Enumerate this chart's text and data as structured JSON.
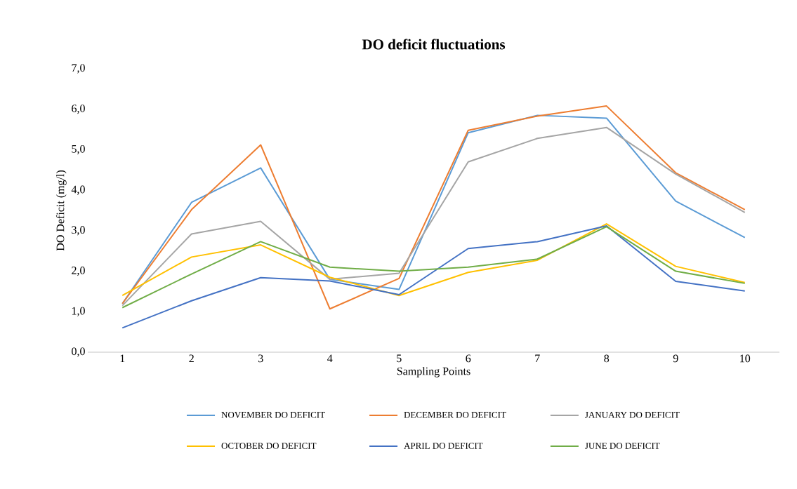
{
  "chart_data": {
    "type": "line",
    "title": "DO deficit fluctuations",
    "xlabel": "Sampling Points",
    "ylabel": "DO Deficit (mg/l)",
    "categories": [
      "1",
      "2",
      "3",
      "4",
      "5",
      "6",
      "7",
      "8",
      "9",
      "10"
    ],
    "ylim": [
      0,
      7
    ],
    "yticks": [
      {
        "value": 0,
        "label": "0,0"
      },
      {
        "value": 1,
        "label": "1,0"
      },
      {
        "value": 2,
        "label": "2,0"
      },
      {
        "value": 3,
        "label": "3,0"
      },
      {
        "value": 4,
        "label": "4,0"
      },
      {
        "value": 5,
        "label": "5,0"
      },
      {
        "value": 6,
        "label": "6,0"
      },
      {
        "value": 7,
        "label": "7,0"
      }
    ],
    "series": [
      {
        "name": "NOVEMBER DO DEFICIT",
        "color": "#5b9bd5",
        "values": [
          1.2,
          3.7,
          4.55,
          1.8,
          1.55,
          5.42,
          5.85,
          5.78,
          3.73,
          2.83
        ]
      },
      {
        "name": "DECEMBER DO DEFICIT",
        "color": "#ed7d31",
        "values": [
          1.2,
          3.52,
          5.12,
          1.07,
          1.82,
          5.48,
          5.83,
          6.08,
          4.43,
          3.52
        ]
      },
      {
        "name": "JANUARY DO DEFICIT",
        "color": "#a5a5a5",
        "values": [
          1.15,
          2.92,
          3.23,
          1.8,
          1.95,
          4.7,
          5.28,
          5.55,
          4.4,
          3.45
        ]
      },
      {
        "name": "OCTOBER DO DEFICIT",
        "color": "#ffc000",
        "values": [
          1.4,
          2.35,
          2.65,
          1.85,
          1.4,
          1.97,
          2.27,
          3.17,
          2.12,
          1.72
        ]
      },
      {
        "name": "APRIL DO DEFICIT",
        "color": "#4472c4",
        "values": [
          0.6,
          1.27,
          1.84,
          1.76,
          1.42,
          2.56,
          2.73,
          3.12,
          1.75,
          1.51
        ]
      },
      {
        "name": "JUNE DO DEFICIT",
        "color": "#70ad47",
        "values": [
          1.1,
          1.93,
          2.73,
          2.1,
          2.0,
          2.1,
          2.3,
          3.1,
          2.0,
          1.7
        ]
      }
    ],
    "legend": "bottom",
    "grid": false,
    "line_style": "solid"
  }
}
